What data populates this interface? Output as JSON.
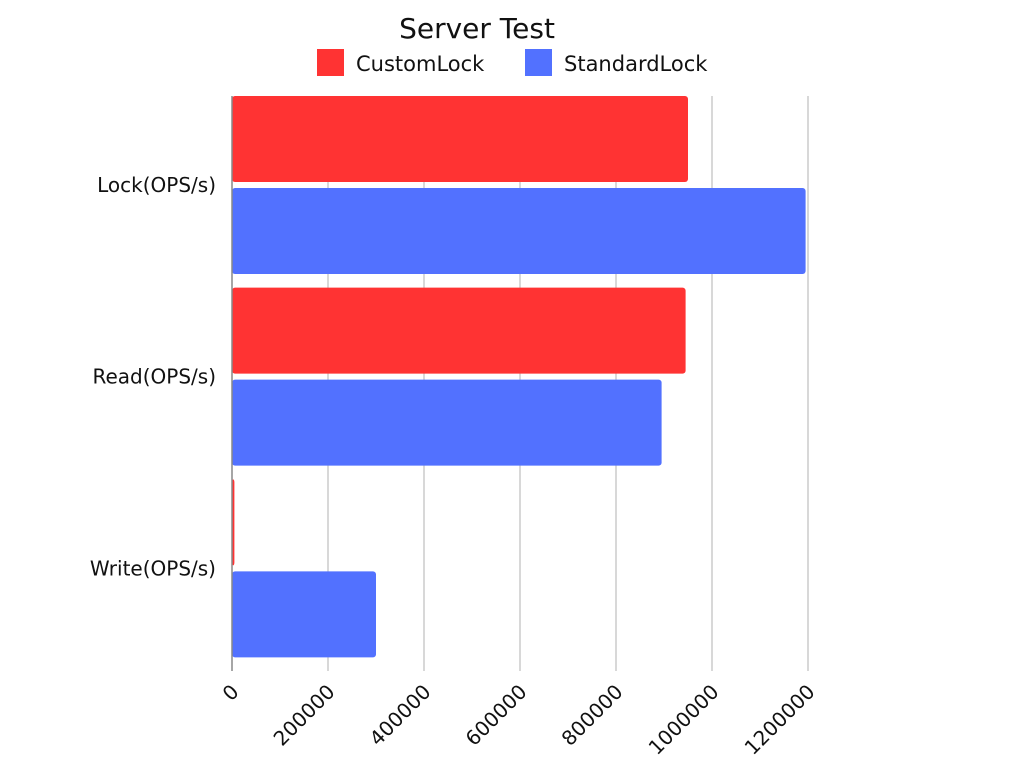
{
  "chart_data": {
    "type": "bar",
    "orientation": "horizontal",
    "title": "Server Test",
    "categories": [
      "Lock(OPS/s)",
      "Read(OPS/s)",
      "Write(OPS/s)"
    ],
    "series": [
      {
        "name": "CustomLock",
        "color": "#ff3333",
        "values": [
          950000,
          945000,
          5000
        ]
      },
      {
        "name": "StandardLock",
        "color": "#5271ff",
        "values": [
          1195000,
          895000,
          300000
        ]
      }
    ],
    "xlim": [
      0,
      1200000
    ],
    "xticks": [
      "0",
      "200000",
      "400000",
      "600000",
      "800000",
      "1000000",
      "1200000"
    ],
    "grid": true,
    "legend_position": "top"
  }
}
